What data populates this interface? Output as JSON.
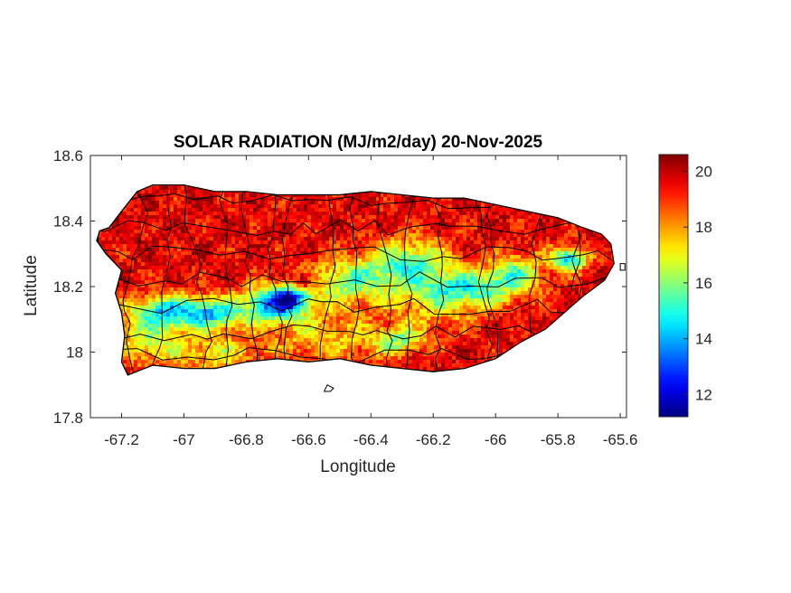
{
  "chart_data": {
    "type": "heatmap",
    "title": "SOLAR RADIATION (MJ/m2/day) 20-Nov-2025",
    "xlabel": "Longitude",
    "ylabel": "Latitude",
    "xlim": [
      -67.3,
      -65.58
    ],
    "ylim": [
      17.8,
      18.6
    ],
    "x_ticks": [
      {
        "value": -67.2,
        "label": "-67.2"
      },
      {
        "value": -67.0,
        "label": "-67"
      },
      {
        "value": -66.8,
        "label": "-66.8"
      },
      {
        "value": -66.6,
        "label": "-66.6"
      },
      {
        "value": -66.4,
        "label": "-66.4"
      },
      {
        "value": -66.2,
        "label": "-66.2"
      },
      {
        "value": -66.0,
        "label": "-66"
      },
      {
        "value": -65.8,
        "label": "-65.8"
      },
      {
        "value": -65.6,
        "label": "-65.6"
      }
    ],
    "y_ticks": [
      {
        "value": 17.8,
        "label": "17.8"
      },
      {
        "value": 18.0,
        "label": "18"
      },
      {
        "value": 18.2,
        "label": "18.2"
      },
      {
        "value": 18.4,
        "label": "18.4"
      },
      {
        "value": 18.6,
        "label": "18.6"
      }
    ],
    "colorbar": {
      "colormap": "jet",
      "range": [
        11.2,
        20.6
      ],
      "ticks": [
        {
          "value": 12,
          "label": "12"
        },
        {
          "value": 14,
          "label": "14"
        },
        {
          "value": 16,
          "label": "16"
        },
        {
          "value": 18,
          "label": "18"
        },
        {
          "value": 20,
          "label": "20"
        }
      ]
    },
    "region_outline": [
      [
        -67.27,
        18.37
      ],
      [
        -67.24,
        18.38
      ],
      [
        -67.2,
        18.43
      ],
      [
        -67.15,
        18.49
      ],
      [
        -67.1,
        18.51
      ],
      [
        -67.0,
        18.51
      ],
      [
        -66.9,
        18.49
      ],
      [
        -66.8,
        18.49
      ],
      [
        -66.7,
        18.48
      ],
      [
        -66.6,
        18.48
      ],
      [
        -66.5,
        18.48
      ],
      [
        -66.4,
        18.49
      ],
      [
        -66.3,
        18.48
      ],
      [
        -66.2,
        18.47
      ],
      [
        -66.1,
        18.47
      ],
      [
        -66.0,
        18.45
      ],
      [
        -65.9,
        18.43
      ],
      [
        -65.8,
        18.41
      ],
      [
        -65.72,
        18.38
      ],
      [
        -65.66,
        18.36
      ],
      [
        -65.63,
        18.33
      ],
      [
        -65.62,
        18.27
      ],
      [
        -65.65,
        18.22
      ],
      [
        -65.72,
        18.17
      ],
      [
        -65.78,
        18.12
      ],
      [
        -65.84,
        18.07
      ],
      [
        -65.92,
        18.03
      ],
      [
        -66.0,
        17.98
      ],
      [
        -66.1,
        17.95
      ],
      [
        -66.2,
        17.94
      ],
      [
        -66.3,
        17.95
      ],
      [
        -66.4,
        17.96
      ],
      [
        -66.5,
        17.98
      ],
      [
        -66.6,
        17.97
      ],
      [
        -66.7,
        17.98
      ],
      [
        -66.8,
        17.97
      ],
      [
        -66.9,
        17.95
      ],
      [
        -67.0,
        17.95
      ],
      [
        -67.1,
        17.96
      ],
      [
        -67.18,
        17.93
      ],
      [
        -67.2,
        17.97
      ],
      [
        -67.19,
        18.05
      ],
      [
        -67.2,
        18.12
      ],
      [
        -67.22,
        18.18
      ],
      [
        -67.2,
        18.25
      ],
      [
        -67.25,
        18.3
      ],
      [
        -67.28,
        18.34
      ]
    ],
    "islets": [
      [
        [
          -66.55,
          17.88
        ],
        [
          -66.53,
          17.88
        ],
        [
          -66.52,
          17.89
        ],
        [
          -66.54,
          17.9
        ]
      ],
      [
        [
          -65.6,
          18.27
        ],
        [
          -65.585,
          18.27
        ],
        [
          -65.585,
          18.25
        ],
        [
          -65.6,
          18.25
        ]
      ]
    ],
    "field": {
      "base": 19.6,
      "features": [
        {
          "lon": -67.05,
          "lat": 18.13,
          "slon": 0.09,
          "slat": 0.035,
          "amp": -5.0
        },
        {
          "lon": -66.9,
          "lat": 18.12,
          "slon": 0.06,
          "slat": 0.035,
          "amp": -3.8
        },
        {
          "lon": -66.72,
          "lat": 18.15,
          "slon": 0.07,
          "slat": 0.04,
          "amp": -5.8
        },
        {
          "lon": -66.66,
          "lat": 18.17,
          "slon": 0.04,
          "slat": 0.025,
          "amp": -4.0
        },
        {
          "lon": -66.47,
          "lat": 18.22,
          "slon": 0.1,
          "slat": 0.05,
          "amp": -3.6
        },
        {
          "lon": -66.28,
          "lat": 18.28,
          "slon": 0.09,
          "slat": 0.05,
          "amp": -3.8
        },
        {
          "lon": -66.08,
          "lat": 18.2,
          "slon": 0.11,
          "slat": 0.04,
          "amp": -3.8
        },
        {
          "lon": -65.94,
          "lat": 18.25,
          "slon": 0.06,
          "slat": 0.04,
          "amp": -3.2
        },
        {
          "lon": -65.77,
          "lat": 18.29,
          "slon": 0.04,
          "slat": 0.025,
          "amp": -5.5
        },
        {
          "lon": -66.32,
          "lat": 18.04,
          "slon": 0.06,
          "slat": 0.03,
          "amp": -3.2
        },
        {
          "lon": -67.12,
          "lat": 18.04,
          "slon": 0.08,
          "slat": 0.05,
          "amp": -2.8
        },
        {
          "lon": -66.9,
          "lat": 18.0,
          "slon": 0.1,
          "slat": 0.04,
          "amp": -2.3
        },
        {
          "lon": -66.55,
          "lat": 18.05,
          "slon": 0.12,
          "slat": 0.06,
          "amp": -2.0
        },
        {
          "lon": -66.2,
          "lat": 18.15,
          "slon": 0.1,
          "slat": 0.06,
          "amp": -1.8
        },
        {
          "lon": -66.62,
          "lat": 18.22,
          "slon": 0.025,
          "slat": 0.02,
          "amp": 2.5
        }
      ]
    }
  }
}
